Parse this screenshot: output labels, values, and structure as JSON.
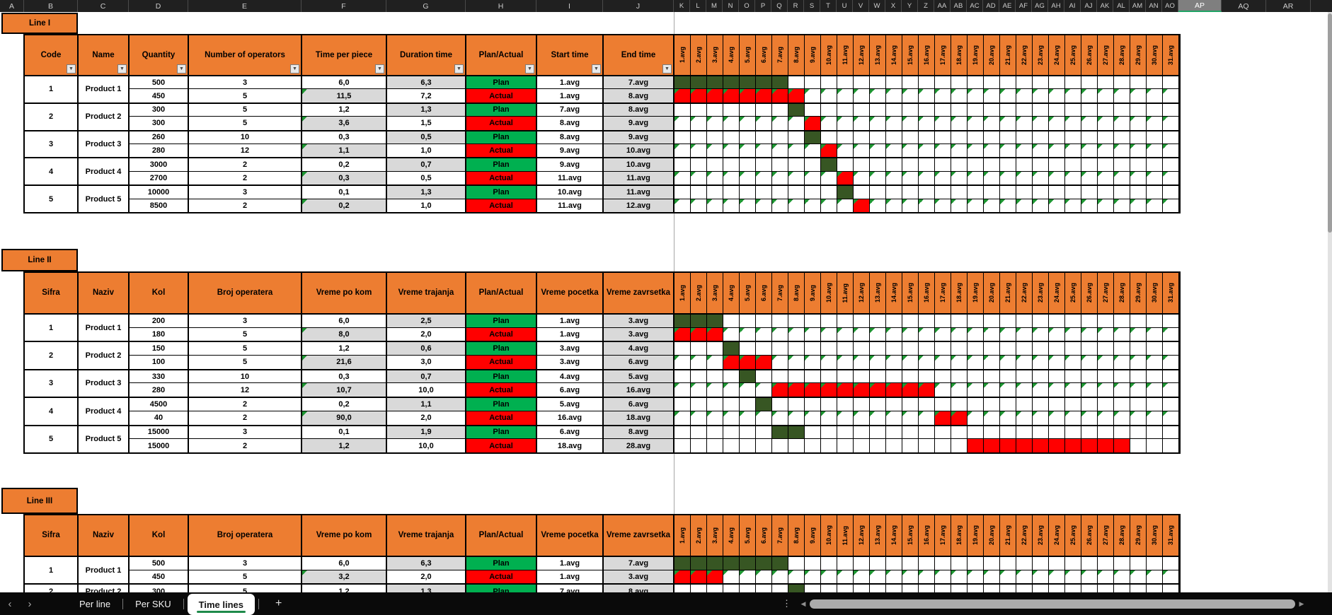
{
  "colors": {
    "header_orange": "#ED7D31",
    "plan_green": "#00B050",
    "actual_red": "#FF0000",
    "bar_dark_green": "#375623",
    "bar_red": "#FF0000",
    "cell_gray": "#D9D9D9",
    "note_triangle_green": "#1e9632",
    "active_tab_underline": "#1E8A4A",
    "selected_column_underline": "#21A366"
  },
  "columns": {
    "left": [
      "A",
      "B",
      "C",
      "D",
      "E",
      "F",
      "G",
      "H",
      "I",
      "J"
    ],
    "days": [
      "K",
      "L",
      "M",
      "N",
      "O",
      "P",
      "Q",
      "R",
      "S",
      "T",
      "U",
      "V",
      "W",
      "X",
      "Y",
      "Z",
      "AA",
      "AB",
      "AC",
      "AD",
      "AE",
      "AF",
      "AG",
      "AH",
      "AI",
      "AJ",
      "AK",
      "AL",
      "AM",
      "AN",
      "AO"
    ],
    "right": [
      "AP",
      "AQ",
      "AR"
    ],
    "selected": "AP"
  },
  "days": [
    "1.avg",
    "2.avg",
    "3.avg",
    "4.avg",
    "5.avg",
    "6.avg",
    "7.avg",
    "8.avg",
    "9.avg",
    "10.avg",
    "11.avg",
    "12.avg",
    "13.avg",
    "14.avg",
    "15.avg",
    "16.avg",
    "17.avg",
    "18.avg",
    "19.avg",
    "20.avg",
    "21.avg",
    "22.avg",
    "23.avg",
    "24.avg",
    "25.avg",
    "26.avg",
    "27.avg",
    "28.avg",
    "29.avg",
    "30.avg",
    "31.avg"
  ],
  "sections": [
    {
      "label": "Line I",
      "filters": true,
      "headers": [
        "Code",
        "Name",
        "Quantity",
        "Number of operators",
        "Time per piece",
        "Duration time",
        "Plan/Actual",
        "Start time",
        "End time"
      ],
      "products": [
        {
          "code": "1",
          "name": "Product 1",
          "rows": [
            {
              "quantity": "500",
              "operators": "3",
              "time_per_piece": "6,0",
              "duration": "6,3",
              "type": "Plan",
              "start": "1.avg",
              "end": "7.avg",
              "bar_start": 1,
              "bar_end": 7,
              "notes": false
            },
            {
              "quantity": "450",
              "operators": "5",
              "time_per_piece": "11,5",
              "duration": "7,2",
              "type": "Actual",
              "start": "1.avg",
              "end": "8.avg",
              "bar_start": 1,
              "bar_end": 8,
              "notes": true
            }
          ]
        },
        {
          "code": "2",
          "name": "Product 2",
          "rows": [
            {
              "quantity": "300",
              "operators": "5",
              "time_per_piece": "1,2",
              "duration": "1,3",
              "type": "Plan",
              "start": "7.avg",
              "end": "8.avg",
              "bar_start": 8,
              "bar_end": 8,
              "notes": false
            },
            {
              "quantity": "300",
              "operators": "5",
              "time_per_piece": "3,6",
              "duration": "1,5",
              "type": "Actual",
              "start": "8.avg",
              "end": "9.avg",
              "bar_start": 9,
              "bar_end": 9,
              "notes": true
            }
          ]
        },
        {
          "code": "3",
          "name": "Product 3",
          "rows": [
            {
              "quantity": "260",
              "operators": "10",
              "time_per_piece": "0,3",
              "duration": "0,5",
              "type": "Plan",
              "start": "8.avg",
              "end": "9.avg",
              "bar_start": 9,
              "bar_end": 9,
              "notes": false
            },
            {
              "quantity": "280",
              "operators": "12",
              "time_per_piece": "1,1",
              "duration": "1,0",
              "type": "Actual",
              "start": "9.avg",
              "end": "10.avg",
              "bar_start": 10,
              "bar_end": 10,
              "notes": true
            }
          ]
        },
        {
          "code": "4",
          "name": "Product 4",
          "rows": [
            {
              "quantity": "3000",
              "operators": "2",
              "time_per_piece": "0,2",
              "duration": "0,7",
              "type": "Plan",
              "start": "9.avg",
              "end": "10.avg",
              "bar_start": 10,
              "bar_end": 10,
              "notes": false
            },
            {
              "quantity": "2700",
              "operators": "2",
              "time_per_piece": "0,3",
              "duration": "0,5",
              "type": "Actual",
              "start": "11.avg",
              "end": "11.avg",
              "bar_start": 11,
              "bar_end": 11,
              "notes": true
            }
          ]
        },
        {
          "code": "5",
          "name": "Product 5",
          "rows": [
            {
              "quantity": "10000",
              "operators": "3",
              "time_per_piece": "0,1",
              "duration": "1,3",
              "type": "Plan",
              "start": "10.avg",
              "end": "11.avg",
              "bar_start": 11,
              "bar_end": 11,
              "notes": false
            },
            {
              "quantity": "8500",
              "operators": "2",
              "time_per_piece": "0,2",
              "duration": "1,0",
              "type": "Actual",
              "start": "11.avg",
              "end": "12.avg",
              "bar_start": 12,
              "bar_end": 12,
              "notes": true
            }
          ]
        }
      ]
    },
    {
      "label": "Line II",
      "filters": false,
      "headers": [
        "Sifra",
        "Naziv",
        "Kol",
        "Broj operatera",
        "Vreme po kom",
        "Vreme trajanja",
        "Plan/Actual",
        "Vreme pocetka",
        "Vreme zavrsetka"
      ],
      "products": [
        {
          "code": "1",
          "name": "Product 1",
          "rows": [
            {
              "quantity": "200",
              "operators": "3",
              "time_per_piece": "6,0",
              "duration": "2,5",
              "type": "Plan",
              "start": "1.avg",
              "end": "3.avg",
              "bar_start": 1,
              "bar_end": 3,
              "notes": false
            },
            {
              "quantity": "180",
              "operators": "5",
              "time_per_piece": "8,0",
              "duration": "2,0",
              "type": "Actual",
              "start": "1.avg",
              "end": "3.avg",
              "bar_start": 1,
              "bar_end": 3,
              "notes": true
            }
          ]
        },
        {
          "code": "2",
          "name": "Product 2",
          "rows": [
            {
              "quantity": "150",
              "operators": "5",
              "time_per_piece": "1,2",
              "duration": "0,6",
              "type": "Plan",
              "start": "3.avg",
              "end": "4.avg",
              "bar_start": 4,
              "bar_end": 4,
              "notes": false
            },
            {
              "quantity": "100",
              "operators": "5",
              "time_per_piece": "21,6",
              "duration": "3,0",
              "type": "Actual",
              "start": "3.avg",
              "end": "6.avg",
              "bar_start": 4,
              "bar_end": 6,
              "notes": true
            }
          ]
        },
        {
          "code": "3",
          "name": "Product 3",
          "rows": [
            {
              "quantity": "330",
              "operators": "10",
              "time_per_piece": "0,3",
              "duration": "0,7",
              "type": "Plan",
              "start": "4.avg",
              "end": "5.avg",
              "bar_start": 5,
              "bar_end": 5,
              "notes": false
            },
            {
              "quantity": "280",
              "operators": "12",
              "time_per_piece": "10,7",
              "duration": "10,0",
              "type": "Actual",
              "start": "6.avg",
              "end": "16.avg",
              "bar_start": 7,
              "bar_end": 16,
              "notes": true
            }
          ]
        },
        {
          "code": "4",
          "name": "Product 4",
          "rows": [
            {
              "quantity": "4500",
              "operators": "2",
              "time_per_piece": "0,2",
              "duration": "1,1",
              "type": "Plan",
              "start": "5.avg",
              "end": "6.avg",
              "bar_start": 6,
              "bar_end": 6,
              "notes": false
            },
            {
              "quantity": "40",
              "operators": "2",
              "time_per_piece": "90,0",
              "duration": "2,0",
              "type": "Actual",
              "start": "16.avg",
              "end": "18.avg",
              "bar_start": 17,
              "bar_end": 18,
              "notes": true
            }
          ]
        },
        {
          "code": "5",
          "name": "Product 5",
          "rows": [
            {
              "quantity": "15000",
              "operators": "3",
              "time_per_piece": "0,1",
              "duration": "1,9",
              "type": "Plan",
              "start": "6.avg",
              "end": "8.avg",
              "bar_start": 7,
              "bar_end": 8,
              "notes": false
            },
            {
              "quantity": "15000",
              "operators": "2",
              "time_per_piece": "1,2",
              "duration": "10,0",
              "type": "Actual",
              "start": "18.avg",
              "end": "28.avg",
              "bar_start": 19,
              "bar_end": 28,
              "notes": false
            }
          ]
        }
      ]
    },
    {
      "label": "Line III",
      "filters": false,
      "headers": [
        "Sifra",
        "Naziv",
        "Kol",
        "Broj operatera",
        "Vreme po kom",
        "Vreme trajanja",
        "Plan/Actual",
        "Vreme pocetka",
        "Vreme zavrsetka"
      ],
      "products": [
        {
          "code": "1",
          "name": "Product 1",
          "rows": [
            {
              "quantity": "500",
              "operators": "3",
              "time_per_piece": "6,0",
              "duration": "6,3",
              "type": "Plan",
              "start": "1.avg",
              "end": "7.avg",
              "bar_start": 1,
              "bar_end": 7,
              "notes": false
            },
            {
              "quantity": "450",
              "operators": "5",
              "time_per_piece": "3,2",
              "duration": "2,0",
              "type": "Actual",
              "start": "1.avg",
              "end": "3.avg",
              "bar_start": 1,
              "bar_end": 3,
              "notes": true
            }
          ]
        },
        {
          "code": "2",
          "name": "Product 2",
          "rows": [
            {
              "quantity": "300",
              "operators": "5",
              "time_per_piece": "1,2",
              "duration": "1,3",
              "type": "Plan",
              "start": "7.avg",
              "end": "8.avg",
              "bar_start": 8,
              "bar_end": 8,
              "notes": false
            }
          ]
        }
      ]
    }
  ],
  "tabbar": {
    "back_icon": "‹",
    "forward_icon": "›",
    "items": [
      {
        "label": "Per line",
        "active": false
      },
      {
        "label": "Per SKU",
        "active": false
      },
      {
        "label": "Time lines",
        "active": true
      }
    ],
    "add_label": "+",
    "kebab_icon": "⋮",
    "scroll_left_icon": "◀",
    "scroll_right_icon": "▶"
  }
}
